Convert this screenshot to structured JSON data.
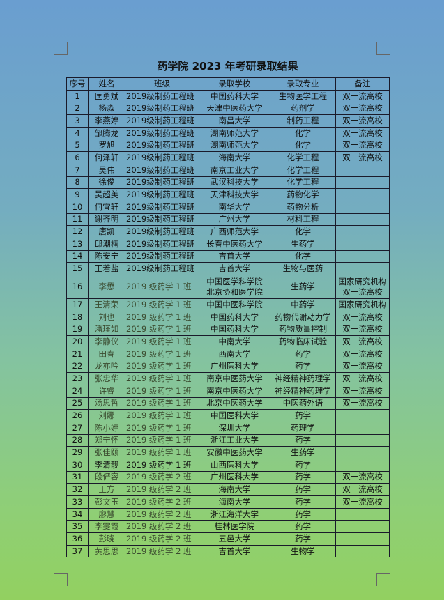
{
  "title": "药学院 2023 年考研录取结果",
  "headers": [
    "序号",
    "姓名",
    "班级",
    "录取学校",
    "录取专业",
    "备注"
  ],
  "rows": [
    [
      "1",
      "匡勇斌",
      "2019级制药工程班",
      "中国药科大学",
      "生物医学工程",
      "双一流高校"
    ],
    [
      "2",
      "杨淼",
      "2019级制药工程班",
      "天津中医药大学",
      "药剂学",
      "双一流高校"
    ],
    [
      "3",
      "李燕婷",
      "2019级制药工程班",
      "南昌大学",
      "制药工程",
      "双一流高校"
    ],
    [
      "4",
      "邹腾龙",
      "2019级制药工程班",
      "湖南师范大学",
      "化学",
      "双一流高校"
    ],
    [
      "5",
      "罗旭",
      "2019级制药工程班",
      "湖南师范大学",
      "化学",
      "双一流高校"
    ],
    [
      "6",
      "何泽轩",
      "2019级制药工程班",
      "海南大学",
      "化学工程",
      "双一流高校"
    ],
    [
      "7",
      "吴伟",
      "2019级制药工程班",
      "南京工业大学",
      "化学工程",
      ""
    ],
    [
      "8",
      "徐俊",
      "2019级制药工程班",
      "武汉科技大学",
      "化学工程",
      ""
    ],
    [
      "9",
      "吴超美",
      "2019级制药工程班",
      "天津科技大学",
      "药物化学",
      ""
    ],
    [
      "10",
      "何宜轩",
      "2019级制药工程班",
      "南华大学",
      "药物分析",
      ""
    ],
    [
      "11",
      "谢齐明",
      "2019级制药工程班",
      "广州大学",
      "材料工程",
      ""
    ],
    [
      "12",
      "唐凯",
      "2019级制药工程班",
      "广西师范大学",
      "化学",
      ""
    ],
    [
      "13",
      "邱潮楠",
      "2019级制药工程班",
      "长春中医药大学",
      "生药学",
      ""
    ],
    [
      "14",
      "陈安宁",
      "2019级制药工程班",
      "吉首大学",
      "化学",
      ""
    ],
    [
      "15",
      "王若盐",
      "2019级制药工程班",
      "吉首大学",
      "生物与医药",
      ""
    ],
    [
      "16",
      "李懋",
      "2019 级药学 1 班",
      "中国医学科学院\n北京协和医学院",
      "生药学",
      "国家研究机构\n双一流高校"
    ],
    [
      "17",
      "王清荣",
      "2019 级药学 1 班",
      "中国中医科学院",
      "中药学",
      "国家研究机构"
    ],
    [
      "18",
      "刘也",
      "2019 级药学 1 班",
      "中国药科大学",
      "药物代谢动力学",
      "双一流高校"
    ],
    [
      "19",
      "潘瑾如",
      "2019 级药学 1 班",
      "中国药科大学",
      "药物质量控制",
      "双一流高校"
    ],
    [
      "20",
      "李静仪",
      "2019 级药学 1 班",
      "中南大学",
      "药物临床试验",
      "双一流高校"
    ],
    [
      "21",
      "田春",
      "2019 级药学 1 班",
      "西南大学",
      "药学",
      "双一流高校"
    ],
    [
      "22",
      "龙亦吟",
      "2019 级药学 1 班",
      "广州医科大学",
      "药学",
      "双一流高校"
    ],
    [
      "23",
      "张忠华",
      "2019 级药学 1 班",
      "南京中医药大学",
      "神经精神药理学",
      "双一流高校"
    ],
    [
      "24",
      "许睿",
      "2019 级药学 1 班",
      "南京中医药大学",
      "神经精神药理学",
      "双一流高校"
    ],
    [
      "25",
      "汤思哲",
      "2019 级药学 1 班",
      "北京中医药大学",
      "中医药外语",
      "双一流高校"
    ],
    [
      "26",
      "刘娜",
      "2019 级药学 1 班",
      "中国医科大学",
      "药学",
      ""
    ],
    [
      "27",
      "陈小婷",
      "2019 级药学 1 班",
      "深圳大学",
      "药理学",
      ""
    ],
    [
      "28",
      "郑宁怀",
      "2019 级药学 1 班",
      "浙江工业大学",
      "药学",
      ""
    ],
    [
      "29",
      "张佳颐",
      "2019 级药学 1 班",
      "安徽中医药大学",
      "生药学",
      ""
    ],
    [
      "30",
      "李清靓",
      "2019 级药学 1 班",
      "山西医科大学",
      "药学",
      ""
    ],
    [
      "31",
      "段俨容",
      "2019 级药学 2 班",
      "广州医科大学",
      "药学",
      "双一流高校"
    ],
    [
      "32",
      "王方",
      "2019 级药学 2 班",
      "海南大学",
      "药学",
      "双一流高校"
    ],
    [
      "33",
      "彭文玉",
      "2019 级药学 2 班",
      "海南大学",
      "药学",
      "双一流高校"
    ],
    [
      "34",
      "廖慧",
      "2019 级药学 2 班",
      "浙江海洋大学",
      "药学",
      ""
    ],
    [
      "35",
      "李雯霞",
      "2019 级药学 2 班",
      "桂林医学院",
      "药学",
      ""
    ],
    [
      "36",
      "彭晓",
      "2019 级药学 2 班",
      "五邑大学",
      "药学",
      ""
    ],
    [
      "37",
      "黄思思",
      "2019 级药学 2 班",
      "吉首大学",
      "生物学",
      ""
    ]
  ]
}
